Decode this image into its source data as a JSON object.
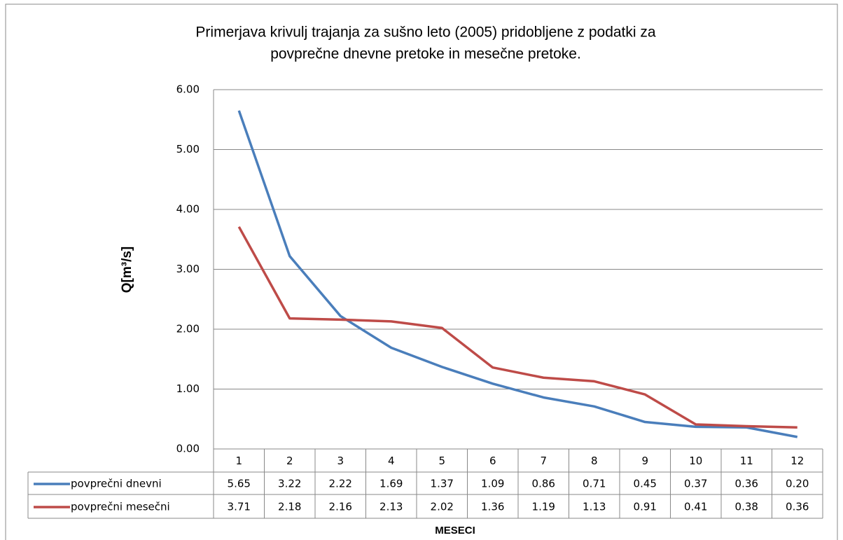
{
  "chart_data": {
    "type": "line",
    "title": [
      "Primerjava krivulj trajanja za sušno leto (2005) pridobljene z podatki za",
      "povprečne dnevne pretoke in mesečne pretoke."
    ],
    "ylabel": "Q[m³/s]",
    "xlabel": "MESECI",
    "categories": [
      "1",
      "2",
      "3",
      "4",
      "5",
      "6",
      "7",
      "8",
      "9",
      "10",
      "11",
      "12"
    ],
    "series": [
      {
        "name": "povprečni dnevni",
        "color": "#4a7ebb",
        "values": [
          5.65,
          3.22,
          2.22,
          1.69,
          1.37,
          1.09,
          0.86,
          0.71,
          0.45,
          0.37,
          0.36,
          0.2
        ],
        "value_labels": [
          "5.65",
          "3.22",
          "2.22",
          "1.69",
          "1.37",
          "1.09",
          "0.86",
          "0.71",
          "0.45",
          "0.37",
          "0.36",
          "0.20"
        ]
      },
      {
        "name": "povprečni mesečni",
        "color": "#be4b48",
        "values": [
          3.71,
          2.18,
          2.16,
          2.13,
          2.02,
          1.36,
          1.19,
          1.13,
          0.91,
          0.41,
          0.38,
          0.36
        ],
        "value_labels": [
          "3.71",
          "2.18",
          "2.16",
          "2.13",
          "2.02",
          "1.36",
          "1.19",
          "1.13",
          "0.91",
          "0.41",
          "0.38",
          "0.36"
        ]
      }
    ],
    "ylim": [
      0,
      6
    ],
    "yticks": [
      {
        "value": 0,
        "label": "0.00"
      },
      {
        "value": 1,
        "label": "1.00"
      },
      {
        "value": 2,
        "label": "2.00"
      },
      {
        "value": 3,
        "label": "3.00"
      },
      {
        "value": 4,
        "label": "4.00"
      },
      {
        "value": 5,
        "label": "5.00"
      },
      {
        "value": 6,
        "label": "6.00"
      }
    ],
    "grid": true
  }
}
